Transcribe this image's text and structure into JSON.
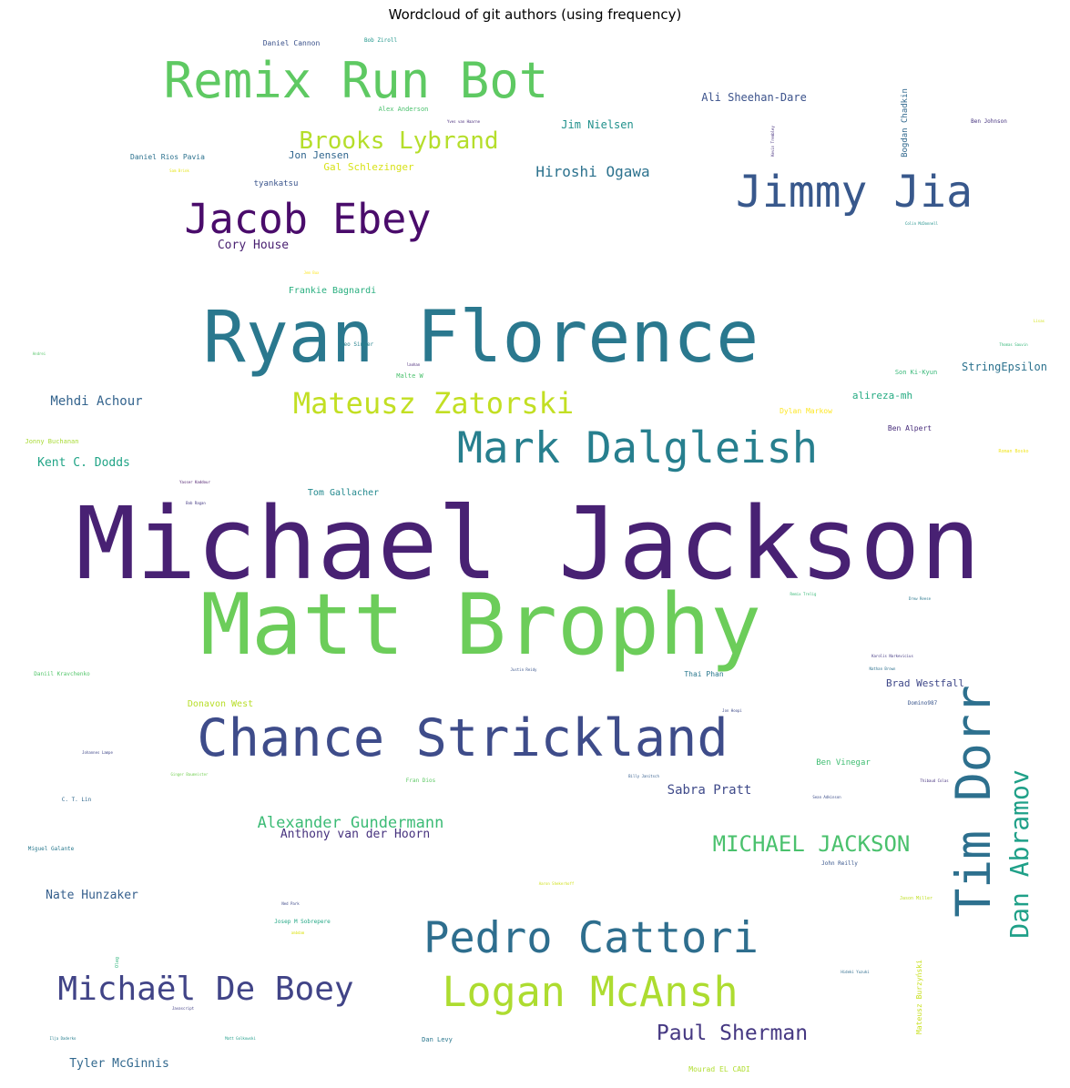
{
  "chart_data": {
    "type": "wordcloud",
    "title": "Wordcloud of git authors (using frequency)",
    "xlabel": "",
    "ylabel": "",
    "colormap": "viridis",
    "background": "#ffffff",
    "words": [
      {
        "text": "Michael Jackson",
        "weight": 100,
        "color": "#482173"
      },
      {
        "text": "Matt Brophy",
        "weight": 86,
        "color": "#6ccd5a"
      },
      {
        "text": "Ryan Florence",
        "weight": 72,
        "color": "#2a788e"
      },
      {
        "text": "Chance Strickland",
        "weight": 53,
        "color": "#3e4c8a"
      },
      {
        "text": "Tim Dorr",
        "weight": 49,
        "color": "#2d708e"
      },
      {
        "text": "Remix Run Bot",
        "weight": 50,
        "color": "#5ec962"
      },
      {
        "text": "Jimmy Jia",
        "weight": 44,
        "color": "#38588c"
      },
      {
        "text": "Mark Dalgleish",
        "weight": 43,
        "color": "#277f8e"
      },
      {
        "text": "Pedro Cattori",
        "weight": 43,
        "color": "#2e6e8e"
      },
      {
        "text": "Jacob Ebey",
        "weight": 41,
        "color": "#4a0c6b"
      },
      {
        "text": "Logan McAnsh",
        "weight": 41,
        "color": "#addc30"
      },
      {
        "text": "Michaël De Boey",
        "weight": 33,
        "color": "#414487"
      },
      {
        "text": "Mateusz Zatorski",
        "weight": 29,
        "color": "#c2df23"
      },
      {
        "text": "Brooks Lybrand",
        "weight": 24,
        "color": "#b5de2b"
      },
      {
        "text": "Dan Abramov",
        "weight": 26,
        "color": "#1fa088"
      },
      {
        "text": "MICHAEL JACKSON",
        "weight": 22,
        "color": "#4ac16d"
      },
      {
        "text": "Paul Sherman",
        "weight": 21,
        "color": "#453882"
      },
      {
        "text": "Alexander Gundermann",
        "weight": 15,
        "color": "#3bbb75"
      },
      {
        "text": "Hiroshi Ogawa",
        "weight": 14,
        "color": "#2c728e"
      },
      {
        "text": "Sabra Pratt",
        "weight": 12,
        "color": "#3e4989"
      },
      {
        "text": "Mehdi Achour",
        "weight": 12,
        "color": "#33638d"
      },
      {
        "text": "Anthony van der Hoorn",
        "weight": 11,
        "color": "#46327e"
      },
      {
        "text": "Tyler McGinnis",
        "weight": 11,
        "color": "#31688e"
      },
      {
        "text": "Nate Hunzaker",
        "weight": 11,
        "color": "#355f8d"
      },
      {
        "text": "Kent C. Dodds",
        "weight": 11,
        "color": "#20a486"
      },
      {
        "text": "Cory House",
        "weight": 11,
        "color": "#481f70"
      },
      {
        "text": "Jim Nielsen",
        "weight": 10,
        "color": "#21918c"
      },
      {
        "text": "Ali Sheehan-Dare",
        "weight": 10,
        "color": "#3b528b"
      },
      {
        "text": "Brad Westfall",
        "weight": 10,
        "color": "#3f4889"
      },
      {
        "text": "alireza-mh",
        "weight": 10,
        "color": "#25ab82"
      },
      {
        "text": "StringEpsilon",
        "weight": 10,
        "color": "#2c728e"
      },
      {
        "text": "Jon Jensen",
        "weight": 10,
        "color": "#31668e"
      },
      {
        "text": "Gal Schlezinger",
        "weight": 10,
        "color": "#d8e219"
      },
      {
        "text": "Frankie Bagnardi",
        "weight": 9,
        "color": "#29af7f"
      },
      {
        "text": "Tom Gallacher",
        "weight": 9,
        "color": "#23898e"
      },
      {
        "text": "Donavon West",
        "weight": 9,
        "color": "#b8de29"
      },
      {
        "text": "Ben Vinegar",
        "weight": 9,
        "color": "#40bd72"
      },
      {
        "text": "tyankatsu",
        "weight": 8,
        "color": "#3a548c"
      },
      {
        "text": "Bogdan Chadkin",
        "weight": 8,
        "color": "#31688e"
      },
      {
        "text": "Thai Phan",
        "weight": 7,
        "color": "#2a788e"
      },
      {
        "text": "Mourad EL CADI",
        "weight": 7,
        "color": "#b0dd2f"
      },
      {
        "text": "Daniel Cannon",
        "weight": 7,
        "color": "#3b528b"
      },
      {
        "text": "Ben Alpert",
        "weight": 7,
        "color": "#472c7a"
      },
      {
        "text": "Dylan Markow",
        "weight": 7,
        "color": "#fde725"
      },
      {
        "text": "Daniel Rios Pavia",
        "weight": 6,
        "color": "#2c718e"
      },
      {
        "text": "Alex Anderson",
        "weight": 6,
        "color": "#4ac16d"
      },
      {
        "text": "Jonny Buchanan",
        "weight": 6,
        "color": "#a8db34"
      },
      {
        "text": "Son Ki-Kyun",
        "weight": 6,
        "color": "#37b878"
      },
      {
        "text": "Bob Ziroll",
        "weight": 6,
        "color": "#1f968b"
      },
      {
        "text": "Domino987",
        "weight": 6,
        "color": "#39558c"
      },
      {
        "text": "Leo Singer",
        "weight": 6,
        "color": "#26828e"
      },
      {
        "text": "Malte W",
        "weight": 6,
        "color": "#4ac16d"
      },
      {
        "text": "Mateusz Burzyński",
        "weight": 6,
        "color": "#c8e020"
      },
      {
        "text": "Dan Levy",
        "weight": 5,
        "color": "#2a778e"
      },
      {
        "text": "Miguel Galante",
        "weight": 5,
        "color": "#29798e"
      },
      {
        "text": "John Reilly",
        "weight": 5,
        "color": "#39568c"
      },
      {
        "text": "Fran Dios",
        "weight": 5,
        "color": "#5cc863"
      },
      {
        "text": "Josep M Sobrepere",
        "weight": 5,
        "color": "#22a785"
      },
      {
        "text": "C. T. Lin",
        "weight": 5,
        "color": "#31688e"
      },
      {
        "text": "Daniil Kravchenko",
        "weight": 5,
        "color": "#52c569"
      },
      {
        "text": "Jason Miller",
        "weight": 5,
        "color": "#c0df25"
      },
      {
        "text": "Ben Johnson",
        "weight": 5,
        "color": "#46337f"
      },
      {
        "text": "Roman Bosko",
        "weight": 4,
        "color": "#f1e51d"
      },
      {
        "text": "Ilja Daderko",
        "weight": 4,
        "color": "#277e8e"
      },
      {
        "text": "Matt Golkowski",
        "weight": 4,
        "color": "#1e9d89"
      },
      {
        "text": "Oleg",
        "weight": 4,
        "color": "#2fb47c"
      },
      {
        "text": "Yves van Haarne",
        "weight": 4,
        "color": "#472a7a"
      },
      {
        "text": "Justin Reidy",
        "weight": 4,
        "color": "#3a548c"
      },
      {
        "text": "Karolis Narkevicius",
        "weight": 4,
        "color": "#443a83"
      },
      {
        "text": "Nathan Brown",
        "weight": 4,
        "color": "#2d708e"
      },
      {
        "text": "Kevin Trembley",
        "weight": 4,
        "color": "#46307e"
      },
      {
        "text": "Johannes Lampe",
        "weight": 4,
        "color": "#3f4788"
      },
      {
        "text": "Ginger Baumeister",
        "weight": 4,
        "color": "#75d054"
      },
      {
        "text": "Billy Janitsch",
        "weight": 4,
        "color": "#355e8d"
      },
      {
        "text": "Thibaud Colas",
        "weight": 4,
        "color": "#46337f"
      },
      {
        "text": "Sean Adkinson",
        "weight": 4,
        "color": "#3d4e8a"
      },
      {
        "text": "Aaron Shekerhoff",
        "weight": 4,
        "color": "#d0e11c"
      },
      {
        "text": "Ned Park",
        "weight": 4,
        "color": "#3e4989"
      },
      {
        "text": "Hideki Yuzuki",
        "weight": 4,
        "color": "#2f6c8e"
      },
      {
        "text": "Javascript",
        "weight": 4,
        "color": "#424086"
      },
      {
        "text": "Bob Ragan",
        "weight": 4,
        "color": "#443983"
      },
      {
        "text": "Yasser Kaddour",
        "weight": 4,
        "color": "#481769"
      },
      {
        "text": "Colin McDonnell",
        "weight": 4,
        "color": "#21918c"
      },
      {
        "text": "Sam Brink",
        "weight": 4,
        "color": "#e5e419"
      },
      {
        "text": "Jem Bux",
        "weight": 4,
        "color": "#fde725"
      },
      {
        "text": "Lisas",
        "weight": 4,
        "color": "#d2e21b"
      },
      {
        "text": "Thomas Sauvin",
        "weight": 4,
        "color": "#35b779"
      },
      {
        "text": "Andrei",
        "weight": 4,
        "color": "#54c568"
      },
      {
        "text": "laohan",
        "weight": 4,
        "color": "#482878"
      },
      {
        "text": "Remix Trelig",
        "weight": 4,
        "color": "#38b977"
      },
      {
        "text": "Drew Reese",
        "weight": 4,
        "color": "#2a788e"
      },
      {
        "text": "Jon Hoopi",
        "weight": 4,
        "color": "#3e4a89"
      },
      {
        "text": "ambdam",
        "weight": 4,
        "color": "#dde318"
      }
    ]
  }
}
